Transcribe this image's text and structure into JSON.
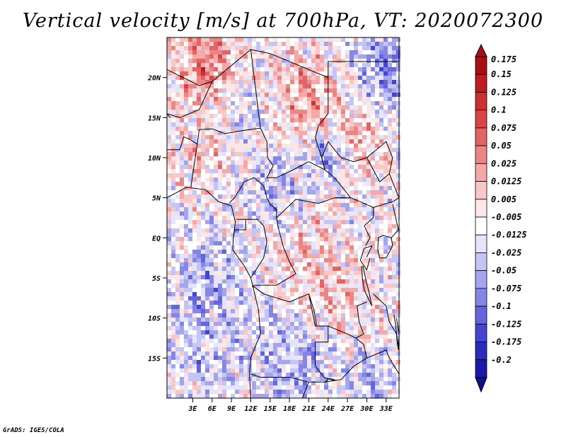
{
  "title": "Vertical velocity [m/s] at 700hPa, VT: 2020072300",
  "credit": "GrADS: IGES/COLA",
  "map": {
    "lon_range": [
      -1,
      35
    ],
    "lat_range": [
      -20,
      25
    ],
    "lat_ticks": [
      {
        "value": 20,
        "label": "20N"
      },
      {
        "value": 15,
        "label": "15N"
      },
      {
        "value": 10,
        "label": "10N"
      },
      {
        "value": 5,
        "label": "5N"
      },
      {
        "value": 0,
        "label": "EQ"
      },
      {
        "value": -5,
        "label": "5S"
      },
      {
        "value": -10,
        "label": "10S"
      },
      {
        "value": -15,
        "label": "15S"
      }
    ],
    "lon_ticks": [
      {
        "value": 3,
        "label": "3E"
      },
      {
        "value": 6,
        "label": "6E"
      },
      {
        "value": 9,
        "label": "9E"
      },
      {
        "value": 12,
        "label": "12E"
      },
      {
        "value": 15,
        "label": "15E"
      },
      {
        "value": 18,
        "label": "18E"
      },
      {
        "value": 21,
        "label": "21E"
      },
      {
        "value": 24,
        "label": "24E"
      },
      {
        "value": 27,
        "label": "27E"
      },
      {
        "value": 30,
        "label": "30E"
      },
      {
        "value": 33,
        "label": "33E"
      }
    ],
    "field_summary": [
      {
        "region": "Sahel / southern Sahara (north of ~15N)",
        "dominant": "upward/positive, up to 0.175"
      },
      {
        "region": "Horn of Africa highlands / East Sudan",
        "dominant": "mixed, strong negative band near 12N 25E"
      },
      {
        "region": "Gulf of Guinea / Congo basin",
        "dominant": "mixed small values, -0.025 to 0.025"
      },
      {
        "region": "Southern Africa (south of ~12S)",
        "dominant": "mostly negative (subsidence)"
      }
    ]
  },
  "colorbar": {
    "levels": [
      {
        "label": "0.175",
        "color": "#a50f15"
      },
      {
        "label": "0.15",
        "color": "#bd1c22"
      },
      {
        "label": "0.125",
        "color": "#cc3030"
      },
      {
        "label": "0.1",
        "color": "#d94545"
      },
      {
        "label": "0.075",
        "color": "#e26464"
      },
      {
        "label": "0.05",
        "color": "#eb8686"
      },
      {
        "label": "0.025",
        "color": "#f3a9a9"
      },
      {
        "label": "0.0125",
        "color": "#f8c8c8"
      },
      {
        "label": "0.005",
        "color": "#fde6e6"
      },
      {
        "label": "-0.005",
        "color": "#ffffff"
      },
      {
        "label": "-0.0125",
        "color": "#e4e4fb"
      },
      {
        "label": "-0.025",
        "color": "#c5c5f5"
      },
      {
        "label": "-0.05",
        "color": "#a5a5ee"
      },
      {
        "label": "-0.075",
        "color": "#8585e6"
      },
      {
        "label": "-0.1",
        "color": "#6464dc"
      },
      {
        "label": "-0.125",
        "color": "#4545cf"
      },
      {
        "label": "-0.175",
        "color": "#2b2bbd"
      },
      {
        "label": "-0.2",
        "color": "#1a1aa8"
      }
    ],
    "top_triangle_color": "#a50f15",
    "bottom_triangle_color": "#10108a"
  }
}
